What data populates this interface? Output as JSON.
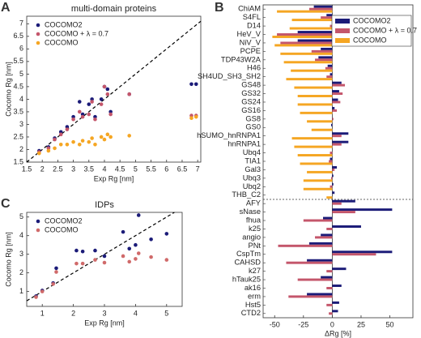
{
  "chart_data": [
    {
      "type": "scatter",
      "panel_label": "A",
      "title": "multi-domain proteins",
      "x_label": "Exp Rg [nm]",
      "y_label": "Cocomo Rg [nm]",
      "x": [
        1.9,
        2.2,
        2.4,
        2.6,
        2.8,
        3.0,
        3.2,
        3.3,
        3.5,
        3.6,
        3.7,
        3.9,
        4.0,
        4.1,
        4.2,
        4.8,
        6.8,
        6.95
      ],
      "series": [
        {
          "name": "COCOMO2",
          "color": "#1b1b78",
          "values": [
            1.95,
            2.1,
            2.45,
            2.7,
            2.9,
            3.3,
            3.9,
            3.4,
            3.8,
            4.0,
            3.3,
            4.0,
            4.5,
            4.4,
            3.5,
            4.2,
            4.6,
            4.6
          ]
        },
        {
          "name": "COCOMO + λ = 0.7",
          "color": "#c4566b",
          "values": [
            1.9,
            2.05,
            2.4,
            2.6,
            2.8,
            3.2,
            3.5,
            3.3,
            3.4,
            3.9,
            3.2,
            3.8,
            4.5,
            4.2,
            3.4,
            4.2,
            3.35,
            3.35
          ]
        },
        {
          "name": "COCOMO",
          "color": "#f5a623",
          "values": [
            1.85,
            1.95,
            2.05,
            2.2,
            2.2,
            2.3,
            2.2,
            2.35,
            2.3,
            2.45,
            2.2,
            2.5,
            2.4,
            2.6,
            2.5,
            2.55,
            3.25,
            3.3
          ]
        }
      ],
      "xlim": [
        1.5,
        7.1
      ],
      "xticks": [
        1.5,
        2,
        2.5,
        3,
        3.5,
        4,
        4.5,
        5,
        5.5,
        6,
        6.5,
        7
      ],
      "ylim": [
        1.5,
        7.3
      ],
      "yticks": [
        1.5,
        2,
        2.5,
        3,
        3.5,
        4,
        4.5,
        5,
        5.5,
        6,
        6.5,
        7
      ],
      "legend": "upper left"
    },
    {
      "type": "barh",
      "panel_label": "B",
      "x_label": "ΔRg [%]",
      "categories": [
        "ChiAM",
        "S4FL",
        "D14",
        "HeV_V",
        "NiV_V",
        "PCPE",
        "TDP43W2A",
        "H46",
        "SH4UD_SH3_SH2",
        "GS48",
        "GS32",
        "GS24",
        "GS16",
        "GS8",
        "GS0",
        "hSUMO_hnRNPA1",
        "hnRNPA1",
        "Ubq4",
        "TIA1",
        "Gal3",
        "Ubq3",
        "Ubq2",
        "THB_C2",
        "AFY",
        "sNase",
        "fhua",
        "k25",
        "angio",
        "PNt",
        "CspTm",
        "CAHSD",
        "k27",
        "hTauk25",
        "ak16",
        "erm",
        "Hst5",
        "CTD2"
      ],
      "series": [
        {
          "name": "COCOMO2",
          "color": "#1b1b78",
          "values": [
            -16,
            -5,
            0,
            -30,
            -30,
            -10,
            -12,
            -4,
            -2,
            8,
            6,
            5,
            2,
            0,
            -1,
            14,
            14,
            0,
            -2,
            4,
            1,
            1,
            2,
            20,
            52,
            -8,
            25,
            -10,
            -20,
            52,
            -22,
            12,
            -10,
            8,
            -22,
            6,
            5
          ]
        },
        {
          "name": "COCOMO + λ = 0.7",
          "color": "#c4566b",
          "values": [
            -20,
            -10,
            -2,
            -48,
            -45,
            -18,
            -15,
            -6,
            -5,
            11,
            9,
            7,
            4,
            1,
            0,
            8,
            8,
            -2,
            -3,
            2,
            -1,
            -2,
            0,
            8,
            20,
            -25,
            -5,
            -15,
            -47,
            38,
            -40,
            -5,
            -30,
            -5,
            -38,
            -5,
            -3
          ]
        },
        {
          "name": "COCOMO",
          "color": "#f5a623",
          "values": [
            -48,
            -35,
            -37,
            -52,
            -50,
            -45,
            -42,
            -36,
            -40,
            -33,
            -30,
            -30,
            -28,
            -22,
            -18,
            -35,
            -33,
            -30,
            -28,
            -22,
            -25,
            -25,
            -5,
            null,
            null,
            null,
            null,
            null,
            null,
            null,
            null,
            null,
            null,
            null,
            null,
            null,
            null
          ]
        }
      ],
      "xlim": [
        -60,
        70
      ],
      "xticks": [
        -50,
        -25,
        0,
        25,
        50
      ],
      "legend": "upper right"
    },
    {
      "type": "scatter",
      "panel_label": "C",
      "title": "IDPs",
      "x_label": "Exp Rg [nm]",
      "y_label": "Cocomo Rg [nm]",
      "x": [
        0.8,
        1.0,
        1.35,
        1.45,
        2.1,
        2.3,
        2.7,
        3.0,
        3.6,
        3.8,
        4.0,
        4.1,
        4.5,
        5.0
      ],
      "series": [
        {
          "name": "COCOMO2",
          "color": "#1b1b78",
          "values": [
            0.75,
            1.05,
            1.45,
            2.25,
            3.2,
            3.15,
            3.2,
            2.9,
            4.2,
            3.3,
            3.5,
            5.1,
            3.8,
            4.1
          ]
        },
        {
          "name": "COCOMO",
          "color": "#d06a6a",
          "values": [
            0.7,
            1.0,
            1.4,
            2.05,
            2.5,
            2.5,
            2.7,
            2.55,
            2.9,
            2.6,
            2.75,
            3.05,
            2.85,
            2.7
          ]
        }
      ],
      "xlim": [
        0.5,
        5.5
      ],
      "xticks": [
        1,
        2,
        3,
        4,
        5
      ],
      "ylim": [
        0.2,
        5.25
      ],
      "yticks": [
        1,
        2,
        3,
        4,
        5
      ],
      "legend": "upper left"
    }
  ]
}
